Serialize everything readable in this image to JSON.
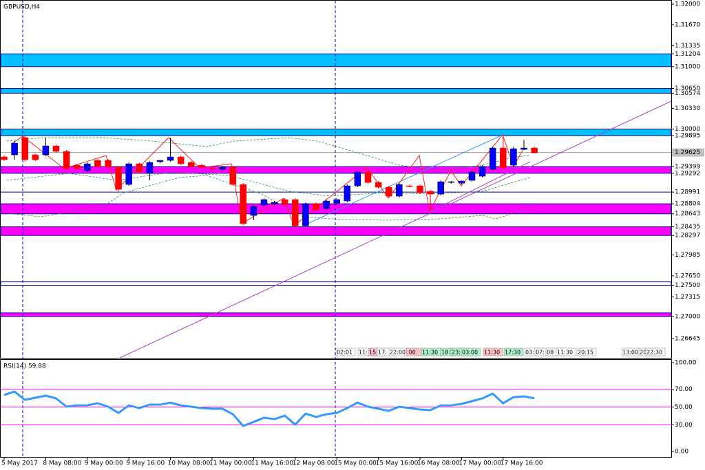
{
  "chart_data": [
    {
      "type": "candlestick",
      "title": "GBPUSD,H4",
      "categories": [
        "5 May 2017",
        null,
        null,
        null,
        "8 May 08:00",
        null,
        null,
        null,
        "9 May 00:00",
        null,
        null,
        null,
        "9 May 16:00",
        null,
        null,
        null,
        "10 May 08:00",
        null,
        null,
        null,
        "11 May 00:00",
        null,
        null,
        null,
        "11 May 16:00",
        null,
        null,
        null,
        "12 May 08:00",
        null,
        null,
        null,
        "15 May 00:00",
        null,
        null,
        null,
        "15 May 16:00",
        null,
        null,
        null,
        "16 May 08:00",
        null,
        null,
        null,
        "17 May 00:00",
        null,
        null,
        null,
        "17 May 16:00",
        null,
        null,
        null
      ],
      "open": [
        1.29554,
        1.29587,
        1.29863,
        1.29587,
        1.29587,
        1.2973,
        1.29642,
        1.29422,
        1.29334,
        1.29499,
        1.29499,
        1.29389,
        1.29113,
        1.29444,
        1.2929,
        1.29477,
        1.29499,
        1.29554,
        1.29466,
        1.29422,
        1.29367,
        1.29356,
        1.29389,
        1.29113,
        1.28618,
        1.28783,
        1.28805,
        1.28871,
        1.28871,
        1.28452,
        1.28805,
        1.28728,
        1.28816,
        1.28849,
        1.29091,
        1.29312,
        1.29146,
        1.29069,
        1.28926,
        1.29091,
        1.29091,
        1.29003,
        1.28959,
        1.29146,
        1.29135,
        1.29179,
        1.29245,
        1.29356,
        1.29697,
        1.29422,
        1.29675,
        1.29697
      ],
      "high": [
        1.29576,
        1.29807,
        1.29885,
        1.29609,
        1.29863,
        1.29752,
        1.29664,
        1.29444,
        1.29466,
        1.29521,
        1.29521,
        1.29411,
        1.29466,
        1.29466,
        1.29488,
        1.2951,
        1.29863,
        1.29576,
        1.29488,
        1.29444,
        1.29389,
        1.29411,
        1.29411,
        1.29135,
        1.28783,
        1.28893,
        1.28849,
        1.28893,
        1.28893,
        1.28827,
        1.28827,
        1.28871,
        1.28893,
        1.29113,
        1.29334,
        1.29334,
        1.29168,
        1.29091,
        1.29135,
        1.29113,
        1.29113,
        1.29025,
        1.29179,
        1.29168,
        1.29179,
        1.29334,
        1.29422,
        1.29719,
        1.29907,
        1.29719,
        1.29829,
        1.29719
      ],
      "low": [
        1.29488,
        1.2951,
        1.29477,
        1.29488,
        1.29565,
        1.2962,
        1.29345,
        1.29345,
        1.29312,
        1.29378,
        1.29367,
        1.29003,
        1.29091,
        1.2929,
        1.29179,
        1.29455,
        1.29477,
        1.29422,
        1.29378,
        1.29378,
        1.29334,
        1.29334,
        1.29091,
        1.28463,
        1.2854,
        1.28761,
        1.28783,
        1.28772,
        1.2843,
        1.2843,
        1.28684,
        1.28706,
        1.28794,
        1.28827,
        1.29069,
        1.29124,
        1.29047,
        1.28904,
        1.28904,
        1.29069,
        1.28959,
        1.28684,
        1.28937,
        1.29124,
        1.29113,
        1.29157,
        1.29223,
        1.29334,
        1.29356,
        1.294,
        1.29664,
        1.29609
      ],
      "close": [
        1.2951,
        1.29774,
        1.2951,
        1.2951,
        1.2973,
        1.29642,
        1.29367,
        1.29367,
        1.29444,
        1.294,
        1.29389,
        1.29036,
        1.29444,
        1.29312,
        1.29466,
        1.29499,
        1.29554,
        1.29444,
        1.294,
        1.294,
        1.29356,
        1.29389,
        1.29113,
        1.28485,
        1.28761,
        1.28871,
        1.28827,
        1.28794,
        1.28452,
        1.28805,
        1.28706,
        1.28849,
        1.28871,
        1.29091,
        1.29312,
        1.29146,
        1.29069,
        1.28926,
        1.29113,
        1.2908,
        1.28981,
        1.28959,
        1.29157,
        1.29157,
        1.29168,
        1.29312,
        1.294,
        1.29697,
        1.29378,
        1.29686,
        1.29697,
        1.2962
      ],
      "up_color": "#0000ff",
      "down_color": "#ff0000",
      "ylim": [
        1.26338,
        1.32066
      ],
      "yticks": [
        {
          "value": 1.32,
          "label": "1.32000"
        },
        {
          "value": 1.3167,
          "label": "1.31670"
        },
        {
          "value": 1.31335,
          "label": "1.31335"
        },
        {
          "value": 1.31204,
          "label": "1.31204"
        },
        {
          "value": 1.31,
          "label": "1.31000"
        },
        {
          "value": 1.3065,
          "label": "1.30650"
        },
        {
          "value": 1.30574,
          "label": "1.30574"
        },
        {
          "value": 1.3033,
          "label": "1.30330"
        },
        {
          "value": 1.3,
          "label": "1.30000"
        },
        1.29895,
        1.29399,
        1.29292,
        1.28991,
        1.28804,
        1.28643,
        1.28435,
        1.28297,
        1.27985,
        {
          "value": 1.2765,
          "label": "1.27650"
        },
        {
          "value": 1.275,
          "label": "1.27500"
        },
        1.27315,
        {
          "value": 1.27,
          "label": "1.27000"
        },
        1.26645
      ],
      "current_price": {
        "value": 1.29625,
        "label": "1.29625"
      },
      "zones": [
        {
          "top": 1.31204,
          "bottom": 1.31,
          "color": "#00bfff"
        },
        {
          "top": 1.3065,
          "bottom": 1.30574,
          "color": "#00bfff"
        },
        {
          "top": 1.3,
          "bottom": 1.29895,
          "color": "#00bfff"
        },
        {
          "top": 1.29399,
          "bottom": 1.29292,
          "color": "#ff00ff"
        },
        {
          "top": 1.28804,
          "bottom": 1.28643,
          "color": "#ff00ff"
        },
        {
          "top": 1.28435,
          "bottom": 1.28297,
          "color": "#ff00ff"
        },
        {
          "top": 1.27554,
          "bottom": 1.275,
          "color": "#ffffff"
        },
        {
          "top": 1.27057,
          "bottom": 1.27,
          "color": "#ff00ff"
        }
      ],
      "levels": [
        1.28991
      ],
      "time_labels": [
        "02:01",
        "11:",
        "15:",
        "17:",
        "22:00",
        ":00",
        "11:30",
        "18:",
        "23:",
        "03:00",
        "11:30",
        "17:30",
        "03:",
        "07:",
        "08",
        "11:30",
        "20:15",
        "13:00",
        "20",
        "22:30"
      ]
    },
    {
      "type": "line",
      "title": "RSI(14) 59.88",
      "color": "#3399ff",
      "values": [
        63.6,
        67.4,
        58.1,
        60.5,
        62.8,
        59.7,
        50.4,
        51.9,
        51.9,
        54.3,
        50.4,
        43.4,
        51.9,
        48.8,
        52.7,
        52.7,
        55.0,
        51.9,
        50.4,
        48.8,
        48.1,
        48.1,
        41.9,
        28.7,
        33.3,
        38.0,
        36.4,
        40.3,
        30.2,
        42.6,
        38.8,
        41.9,
        43.4,
        48.8,
        55.0,
        50.4,
        48.1,
        45.7,
        50.4,
        48.8,
        47.3,
        46.5,
        51.9,
        51.9,
        53.5,
        56.6,
        59.7,
        65.1,
        54.3,
        61.2,
        62.0,
        59.88
      ],
      "ylim": [
        -6.2,
        103.9
      ],
      "yticks": [
        {
          "value": 100,
          "label": "100.00"
        },
        {
          "value": 70,
          "label": "70.00"
        },
        {
          "value": 50,
          "label": "50.00"
        },
        {
          "value": 30,
          "label": "30.00"
        },
        {
          "value": 0,
          "label": "0.00"
        }
      ],
      "levels": [
        70,
        50,
        30
      ],
      "level_color": "#ff00ff"
    }
  ]
}
